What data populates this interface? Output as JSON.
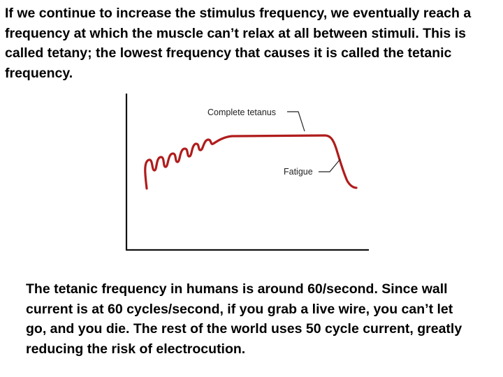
{
  "intro_text": "If we continue to increase the stimulus frequency, we eventually reach a frequency at which the muscle can’t relax at all between stimuli.  This is called tetany; the lowest frequency that causes it is called the tetanic frequency.",
  "diagram": {
    "label_complete_tetanus": "Complete tetanus",
    "label_fatigue": "Fatigue",
    "curve_color": "#b01c1c",
    "axis_color": "#111111"
  },
  "outro_text": "The tetanic frequency in humans is around 60/second.  Since wall current is at 60 cycles/second, if you grab a live wire, you can’t let go, and you die.  The rest of the world uses 50 cycle current, greatly reducing the risk of electrocution."
}
